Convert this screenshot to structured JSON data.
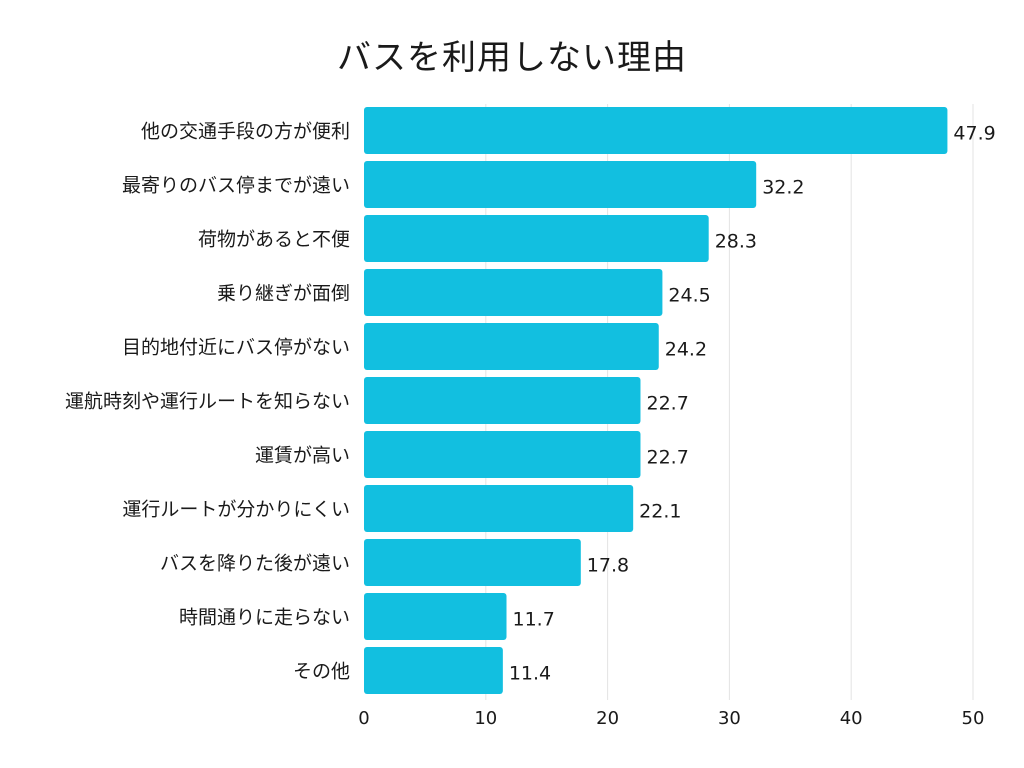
{
  "chart_data": {
    "type": "bar",
    "orientation": "horizontal",
    "title": "バスを利用しない理由",
    "categories": [
      "他の交通手段の方が便利",
      "最寄りのバス停までが遠い",
      "荷物があると不便",
      "乗り継ぎが面倒",
      "目的地付近にバス停がない",
      "運航時刻や運行ルートを知らない",
      "運賃が高い",
      "運行ルートが分かりにくい",
      "バスを降りた後が遠い",
      "時間通りに走らない",
      "その他"
    ],
    "values": [
      47.9,
      32.2,
      28.3,
      24.5,
      24.2,
      22.7,
      22.7,
      22.1,
      17.8,
      11.7,
      11.4
    ],
    "value_labels": [
      "47.9",
      "32.2",
      "28.3",
      "24.5",
      "24.2",
      "22.7",
      "22.7",
      "22.1",
      "17.8",
      "11.7",
      "11.4"
    ],
    "xlim": [
      0,
      50
    ],
    "xticks": [
      0,
      10,
      20,
      30,
      40,
      50
    ],
    "xlabel": "",
    "ylabel": "",
    "grid": "vertical",
    "bar_color": "#12bfe0",
    "grid_color": "#e3e3e3"
  }
}
